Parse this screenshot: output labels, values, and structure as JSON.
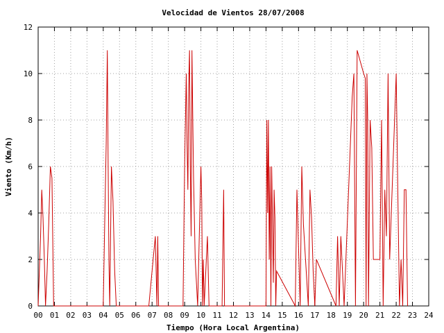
{
  "chart_data": {
    "type": "line",
    "title": "Velocidad de Vientos 28/07/2008",
    "xlabel": "Tiempo (Hora Local Argentina)",
    "ylabel": "Viento (Km/h)",
    "xlim": [
      0,
      24
    ],
    "ylim": [
      0,
      12
    ],
    "x_ticks": [
      "00",
      "01",
      "02",
      "03",
      "04",
      "05",
      "06",
      "07",
      "08",
      "09",
      "10",
      "11",
      "12",
      "13",
      "14",
      "15",
      "16",
      "17",
      "18",
      "19",
      "20",
      "21",
      "22",
      "23",
      "24"
    ],
    "y_ticks": [
      "0",
      "2",
      "4",
      "6",
      "8",
      "10",
      "12"
    ],
    "grid": true,
    "legend": "none",
    "series": [
      {
        "color": "#cc0000",
        "x": [
          0.0,
          0.15,
          0.22,
          0.3,
          0.38,
          0.45,
          0.55,
          0.65,
          0.75,
          0.85,
          0.95,
          1.05,
          1.1,
          4.0,
          4.1,
          4.18,
          4.25,
          4.3,
          4.35,
          4.4,
          4.5,
          4.6,
          4.7,
          4.8,
          6.8,
          7.2,
          7.3,
          7.35,
          7.4,
          8.9,
          9.0,
          9.05,
          9.1,
          9.15,
          9.2,
          9.25,
          9.3,
          9.35,
          9.4,
          9.45,
          9.5,
          9.55,
          9.65,
          9.8,
          10.0,
          10.05,
          10.1,
          10.15,
          10.2,
          10.4,
          10.5,
          11.3,
          11.4,
          11.45,
          14.0,
          14.05,
          14.1,
          14.15,
          14.2,
          14.25,
          14.3,
          14.35,
          14.4,
          14.45,
          14.5,
          14.55,
          14.6,
          14.65,
          15.8,
          15.9,
          16.1,
          16.2,
          16.3,
          16.6,
          16.7,
          16.8,
          16.9,
          17.0,
          17.1,
          18.3,
          18.4,
          18.5,
          18.6,
          18.7,
          18.8,
          19.3,
          19.4,
          19.5,
          19.6,
          20.0,
          20.1,
          20.15,
          20.2,
          20.25,
          20.3,
          20.4,
          20.5,
          20.6,
          20.7,
          21.0,
          21.1,
          21.2,
          21.3,
          21.4,
          21.5,
          21.6,
          21.8,
          22.0,
          22.1,
          22.2,
          22.3,
          22.4,
          22.5,
          22.6,
          22.7
        ],
        "y": [
          0.0,
          3.0,
          5.0,
          3.8,
          2.0,
          0.0,
          1.5,
          3.5,
          6.0,
          5.5,
          0.0,
          0.0,
          0.0,
          0.0,
          4.0,
          7.0,
          11.0,
          6.0,
          2.0,
          0.0,
          6.0,
          4.5,
          1.5,
          0.0,
          0.0,
          3.0,
          0.0,
          3.0,
          0.0,
          0.0,
          6.0,
          8.0,
          10.0,
          7.0,
          5.0,
          9.5,
          11.0,
          6.0,
          3.0,
          11.0,
          8.0,
          5.5,
          2.0,
          0.0,
          6.0,
          4.5,
          0.0,
          2.0,
          0.0,
          3.0,
          0.0,
          0.0,
          5.0,
          0.0,
          0.0,
          8.0,
          4.0,
          8.0,
          2.0,
          6.0,
          0.0,
          6.0,
          3.5,
          1.0,
          5.0,
          3.8,
          0.0,
          1.5,
          0.0,
          5.0,
          0.0,
          6.0,
          3.5,
          0.0,
          5.0,
          3.8,
          1.5,
          0.0,
          2.0,
          0.0,
          3.0,
          0.0,
          3.0,
          1.5,
          0.0,
          9.0,
          10.0,
          0.0,
          11.0,
          10.0,
          9.8,
          0.0,
          10.0,
          8.0,
          0.0,
          8.0,
          6.8,
          2.0,
          2.0,
          2.0,
          8.0,
          0.0,
          5.0,
          3.0,
          10.0,
          2.0,
          6.0,
          10.0,
          5.0,
          0.0,
          2.0,
          0.0,
          5.0,
          5.0,
          0.0
        ]
      }
    ]
  }
}
